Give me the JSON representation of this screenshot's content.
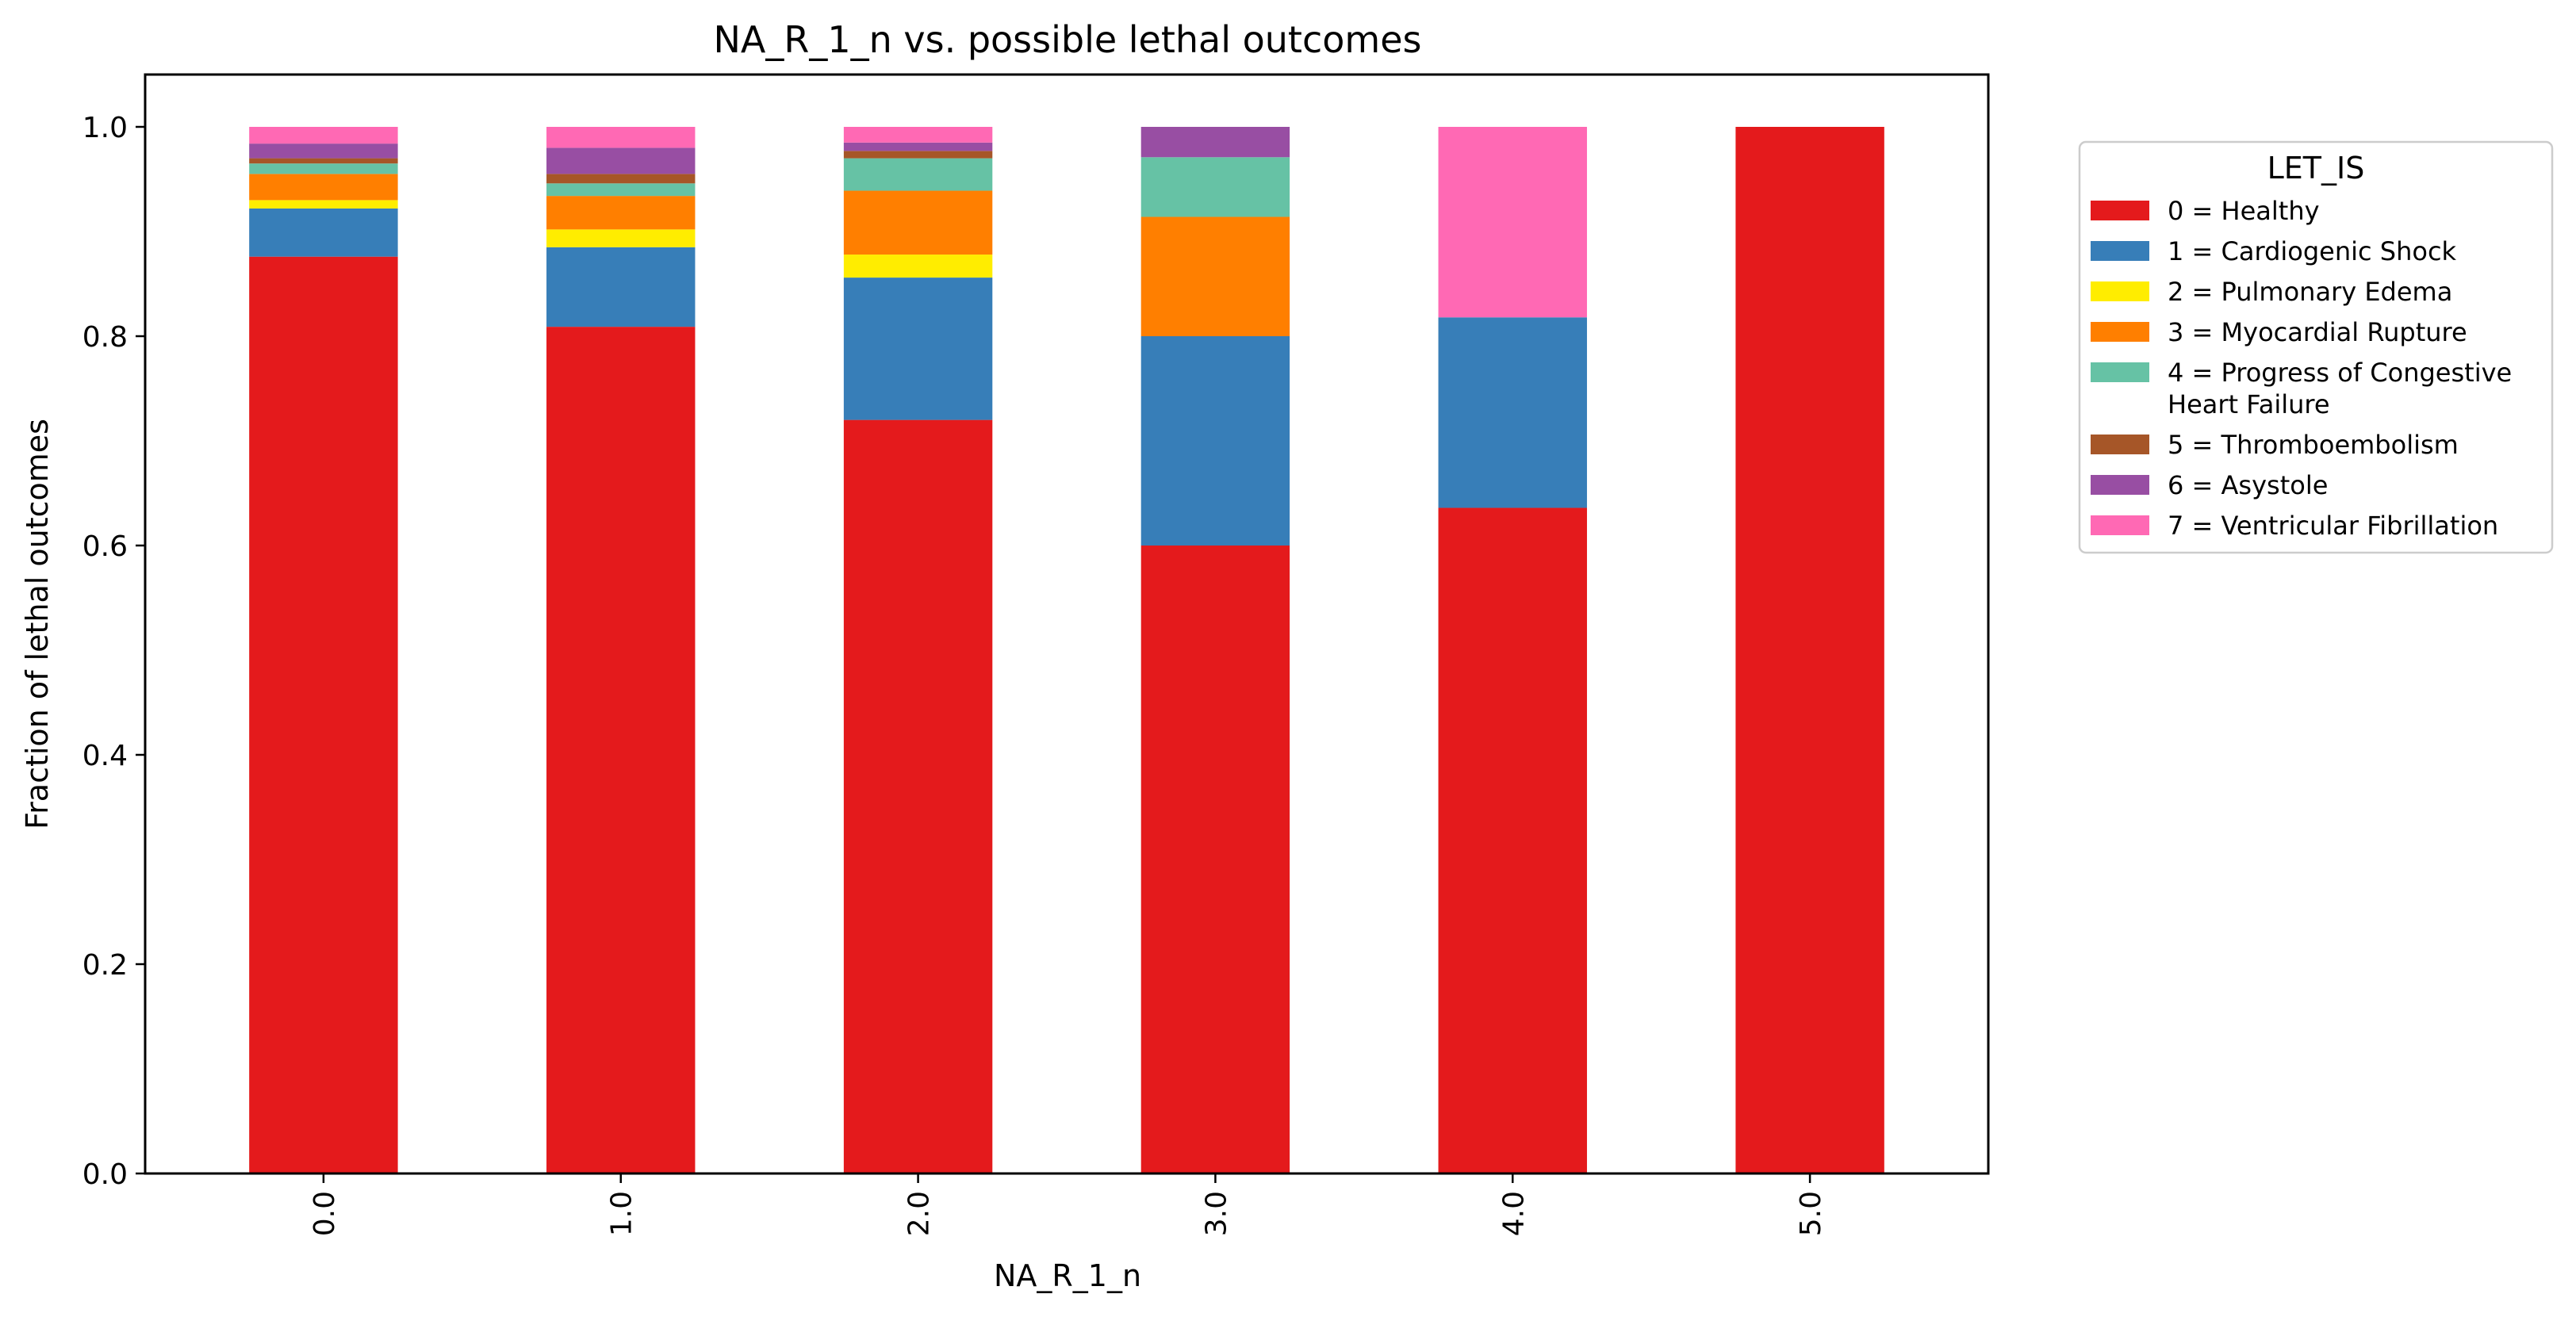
{
  "chart_data": {
    "type": "bar",
    "stacked": true,
    "title": "NA_R_1_n vs. possible lethal outcomes",
    "xlabel": "NA_R_1_n",
    "ylabel": "Fraction of lethal outcomes",
    "categories": [
      "0.0",
      "1.0",
      "2.0",
      "3.0",
      "4.0",
      "5.0"
    ],
    "ylim": [
      0,
      1.05
    ],
    "yticks": [
      "0.0",
      "0.2",
      "0.4",
      "0.6",
      "0.8",
      "1.0"
    ],
    "grid": false,
    "legend": {
      "title": "LET_IS",
      "placement": "outside-right"
    },
    "series": [
      {
        "name": "0 = Healthy",
        "color": "#e41a1c",
        "values": [
          0.876,
          0.809,
          0.72,
          0.6,
          0.636,
          1.0
        ]
      },
      {
        "name": "1 = Cardiogenic Shock",
        "color": "#377eb8",
        "values": [
          0.046,
          0.076,
          0.136,
          0.2,
          0.182,
          0.0
        ]
      },
      {
        "name": "2 = Pulmonary Edema",
        "color": "#ffed00",
        "values": [
          0.008,
          0.017,
          0.022,
          0.0,
          0.0,
          0.0
        ]
      },
      {
        "name": "3 = Myocardial Rupture",
        "color": "#ff7f00",
        "values": [
          0.025,
          0.032,
          0.061,
          0.114,
          0.0,
          0.0
        ]
      },
      {
        "name": "4 = Progress of Congestive\nHeart Failure",
        "color": "#66c2a5",
        "values": [
          0.01,
          0.012,
          0.031,
          0.057,
          0.0,
          0.0
        ]
      },
      {
        "name": "5 = Thromboembolism",
        "color": "#a65628",
        "values": [
          0.005,
          0.009,
          0.007,
          0.0,
          0.0,
          0.0
        ]
      },
      {
        "name": "6 = Asystole",
        "color": "#984ea3",
        "values": [
          0.014,
          0.025,
          0.008,
          0.029,
          0.0,
          0.0
        ]
      },
      {
        "name": "7 = Ventricular Fibrillation",
        "color": "#ff69b4",
        "values": [
          0.016,
          0.02,
          0.015,
          0.0,
          0.182,
          0.0
        ]
      }
    ]
  }
}
